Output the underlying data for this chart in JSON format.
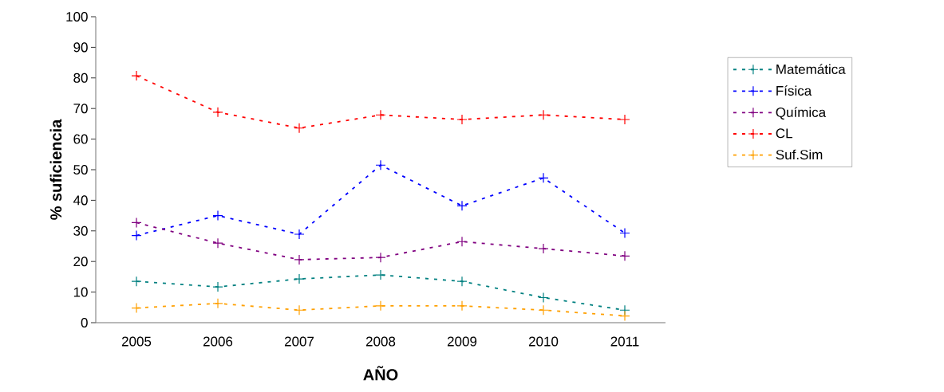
{
  "chart_data": {
    "type": "line",
    "xlabel": "AÑO",
    "ylabel": "% suficiencia",
    "categories": [
      "2005",
      "2006",
      "2007",
      "2008",
      "2009",
      "2010",
      "2011"
    ],
    "series": [
      {
        "name": "Matemática",
        "color": "#008080",
        "values": [
          13.5,
          11.7,
          14.3,
          15.6,
          13.5,
          8.2,
          4.1
        ]
      },
      {
        "name": "Física",
        "color": "#0000ff",
        "values": [
          28.5,
          35,
          28.9,
          51.5,
          38.2,
          47.3,
          29.3
        ]
      },
      {
        "name": "Química",
        "color": "#800080",
        "values": [
          32.7,
          26,
          20.6,
          21.3,
          26.5,
          24.2,
          21.8
        ]
      },
      {
        "name": "CL",
        "color": "#ff0000",
        "values": [
          80.7,
          68.8,
          63.6,
          67.9,
          66.4,
          67.9,
          66.4
        ]
      },
      {
        "name": "Suf.Sim",
        "color": "#ffa000",
        "values": [
          4.8,
          6.3,
          4.1,
          5.5,
          5.5,
          4.1,
          2.2
        ]
      }
    ],
    "ylim": [
      0,
      100
    ],
    "yticks": [
      0,
      10,
      20,
      30,
      40,
      50,
      60,
      70,
      80,
      90,
      100
    ],
    "legend": "right",
    "marker": "cross",
    "line_style": "dashed",
    "grid": false
  }
}
